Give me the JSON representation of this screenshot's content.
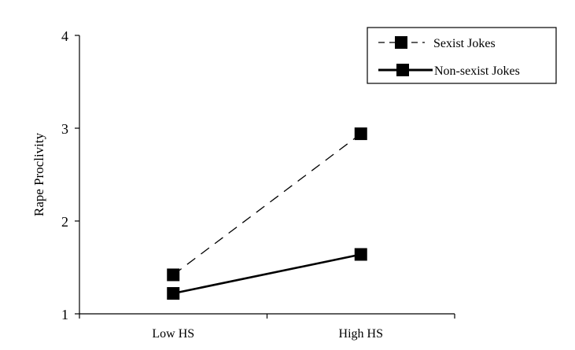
{
  "chart_data": {
    "type": "line",
    "title": "",
    "xlabel": "",
    "ylabel": "Rape Proclivity",
    "categories": [
      "Low HS",
      "High HS"
    ],
    "ylim": [
      1,
      4
    ],
    "yticks": [
      "1",
      "2",
      "3",
      "4"
    ],
    "grid": false,
    "legend_position": "top-right",
    "series": [
      {
        "name": "Sexist Jokes",
        "values": [
          1.42,
          2.94
        ],
        "line_style": "dashed",
        "marker": "square",
        "color": "#000000"
      },
      {
        "name": "Non-sexist Jokes",
        "values": [
          1.22,
          1.64
        ],
        "line_style": "solid",
        "marker": "square",
        "color": "#000000"
      }
    ]
  }
}
